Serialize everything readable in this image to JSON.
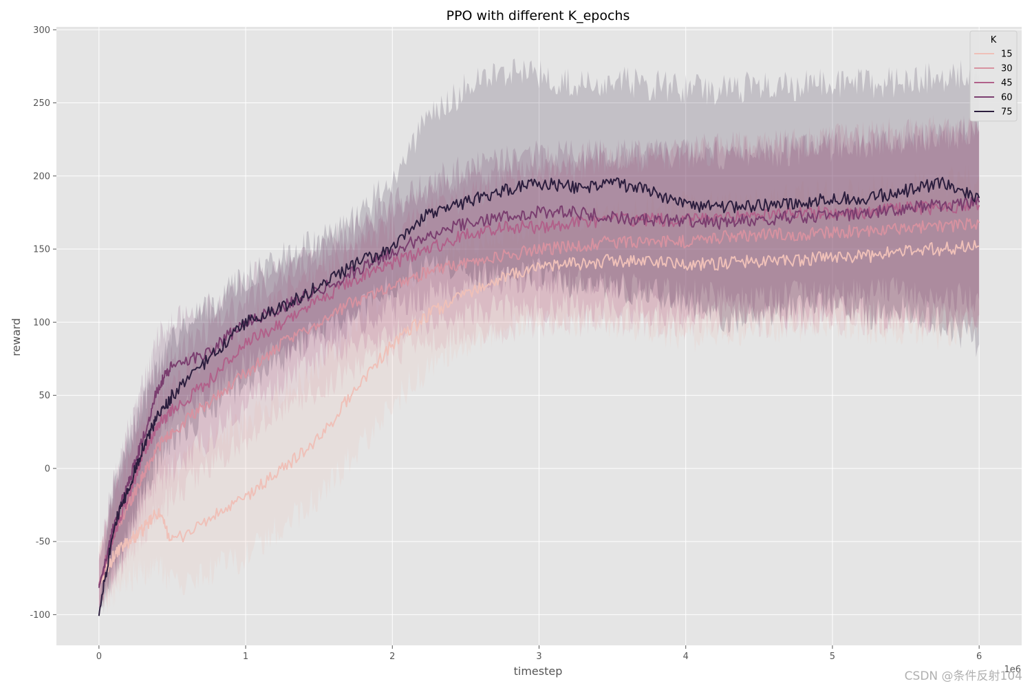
{
  "chart_data": {
    "type": "line",
    "title": "PPO with different K_epochs",
    "xlabel": "timestep",
    "ylabel": "reward",
    "x_offset_label": "1e6",
    "xlim": [
      -0.29,
      6.29
    ],
    "ylim": [
      -121,
      302
    ],
    "xticks": [
      0,
      1,
      2,
      3,
      4,
      5,
      6
    ],
    "yticks": [
      -100,
      -50,
      0,
      50,
      100,
      150,
      200,
      250,
      300
    ],
    "grid": true,
    "legend": {
      "title": "K",
      "placement": "top-right"
    },
    "x": [
      0,
      0.1,
      0.2,
      0.3,
      0.4,
      0.5,
      0.75,
      1.0,
      1.25,
      1.5,
      1.75,
      2.0,
      2.25,
      2.5,
      2.75,
      3.0,
      3.25,
      3.5,
      3.75,
      4.0,
      4.25,
      4.5,
      4.75,
      5.0,
      5.25,
      5.5,
      5.75,
      6.0
    ],
    "series": [
      {
        "name": "15",
        "color": "#efc0b8",
        "values": [
          -80,
          -60,
          -50,
          -42,
          -30,
          -50,
          -35,
          -20,
          0,
          20,
          55,
          85,
          105,
          120,
          130,
          138,
          140,
          142,
          142,
          140,
          140,
          142,
          142,
          145,
          145,
          150,
          150,
          152
        ],
        "lower": [
          -95,
          -85,
          -75,
          -70,
          -65,
          -80,
          -70,
          -60,
          -40,
          -20,
          10,
          45,
          70,
          85,
          95,
          100,
          100,
          100,
          95,
          90,
          90,
          95,
          95,
          100,
          95,
          95,
          90,
          100
        ],
        "upper": [
          -55,
          -30,
          -20,
          -10,
          10,
          0,
          20,
          30,
          50,
          70,
          100,
          125,
          140,
          150,
          160,
          170,
          172,
          175,
          178,
          180,
          180,
          182,
          185,
          188,
          190,
          192,
          195,
          200
        ]
      },
      {
        "name": "30",
        "color": "#d792a0",
        "values": [
          -80,
          -45,
          -25,
          -5,
          15,
          25,
          45,
          65,
          85,
          100,
          115,
          125,
          135,
          140,
          145,
          150,
          152,
          155,
          155,
          155,
          158,
          160,
          160,
          162,
          162,
          165,
          165,
          168
        ],
        "lower": [
          -95,
          -75,
          -60,
          -45,
          -30,
          -20,
          0,
          20,
          40,
          55,
          70,
          80,
          88,
          92,
          95,
          100,
          100,
          100,
          100,
          98,
          100,
          100,
          100,
          102,
          100,
          100,
          100,
          105
        ],
        "upper": [
          -60,
          -20,
          5,
          30,
          50,
          60,
          80,
          100,
          120,
          135,
          150,
          165,
          175,
          185,
          195,
          200,
          205,
          210,
          212,
          215,
          218,
          220,
          222,
          225,
          228,
          230,
          232,
          235
        ]
      },
      {
        "name": "45",
        "color": "#b1618a",
        "values": [
          -80,
          -45,
          -20,
          10,
          30,
          40,
          60,
          85,
          100,
          115,
          130,
          140,
          150,
          160,
          165,
          165,
          168,
          170,
          170,
          170,
          172,
          172,
          175,
          175,
          175,
          178,
          178,
          180
        ],
        "lower": [
          -95,
          -75,
          -55,
          -30,
          -10,
          0,
          20,
          45,
          60,
          75,
          85,
          95,
          100,
          105,
          110,
          110,
          110,
          110,
          108,
          105,
          105,
          105,
          105,
          108,
          105,
          105,
          102,
          105
        ],
        "upper": [
          -60,
          -15,
          15,
          45,
          65,
          75,
          95,
          115,
          130,
          145,
          160,
          175,
          190,
          200,
          205,
          210,
          212,
          215,
          215,
          218,
          220,
          220,
          222,
          225,
          225,
          228,
          230,
          232
        ]
      },
      {
        "name": "60",
        "color": "#7a3e6f",
        "values": [
          -82,
          -40,
          -10,
          20,
          55,
          70,
          80,
          100,
          110,
          122,
          135,
          148,
          160,
          168,
          172,
          175,
          175,
          172,
          170,
          170,
          168,
          170,
          172,
          172,
          175,
          178,
          180,
          182
        ],
        "lower": [
          -95,
          -70,
          -45,
          -15,
          20,
          40,
          50,
          70,
          80,
          90,
          100,
          110,
          120,
          125,
          128,
          130,
          128,
          125,
          122,
          120,
          115,
          115,
          118,
          118,
          120,
          120,
          118,
          115
        ],
        "upper": [
          -65,
          -10,
          25,
          55,
          90,
          100,
          110,
          128,
          138,
          150,
          165,
          180,
          195,
          205,
          210,
          215,
          215,
          215,
          215,
          215,
          215,
          215,
          218,
          220,
          222,
          225,
          228,
          230
        ]
      },
      {
        "name": "75",
        "color": "#2c1e3e",
        "values": [
          -100,
          -40,
          -15,
          15,
          35,
          50,
          75,
          100,
          110,
          125,
          140,
          150,
          175,
          182,
          190,
          195,
          192,
          195,
          190,
          180,
          178,
          180,
          180,
          185,
          185,
          190,
          195,
          185
        ],
        "lower": [
          -100,
          -70,
          -45,
          -15,
          5,
          20,
          40,
          60,
          75,
          95,
          110,
          125,
          140,
          135,
          130,
          135,
          125,
          125,
          120,
          115,
          100,
          105,
          110,
          115,
          105,
          110,
          100,
          85
        ],
        "upper": [
          -95,
          -10,
          15,
          45,
          70,
          90,
          110,
          130,
          145,
          155,
          170,
          200,
          240,
          260,
          270,
          270,
          262,
          265,
          262,
          260,
          258,
          262,
          262,
          265,
          262,
          265,
          268,
          270
        ]
      }
    ]
  },
  "watermark": "CSDN @条件反射104"
}
